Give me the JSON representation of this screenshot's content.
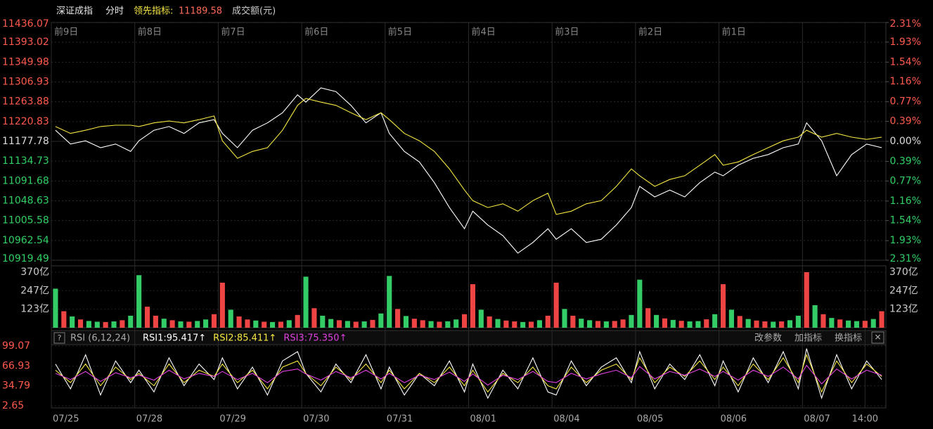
{
  "header": {
    "name": "深证成指",
    "mode": "分时",
    "leading_label": "领先指标:",
    "leading_value": "11189.58",
    "volume_label": "成交额(元)"
  },
  "chart_data": [
    {
      "type": "line",
      "up_color": "#ff5a4d",
      "down_color": "#2fd166",
      "flat_color": "#dddddd",
      "grid_color": "#2a2a2a",
      "day_labels": [
        "前9日",
        "前8日",
        "前7日",
        "前6日",
        "前5日",
        "前4日",
        "前3日",
        "前2日",
        "前1日"
      ],
      "xlim": [
        0,
        10
      ],
      "x": [
        0.05,
        0.23,
        0.41,
        0.59,
        0.77,
        0.95,
        1.05,
        1.23,
        1.41,
        1.59,
        1.77,
        1.95,
        2.05,
        2.23,
        2.41,
        2.59,
        2.77,
        2.95,
        3.05,
        3.23,
        3.41,
        3.59,
        3.77,
        3.95,
        4.05,
        4.23,
        4.41,
        4.59,
        4.77,
        4.95,
        5.05,
        5.23,
        5.41,
        5.59,
        5.77,
        5.95,
        6.05,
        6.23,
        6.41,
        6.59,
        6.77,
        6.95,
        7.05,
        7.23,
        7.41,
        7.59,
        7.77,
        7.95,
        8.05,
        8.23,
        8.41,
        8.59,
        8.77,
        8.95,
        9.05,
        9.23,
        9.41,
        9.59,
        9.77,
        9.95
      ],
      "ylim": [
        10919.49,
        11436.07
      ],
      "yticks": [
        11436.07,
        11393.02,
        11349.98,
        11306.93,
        11263.88,
        11220.83,
        11177.78,
        11134.73,
        11091.68,
        11048.63,
        11005.58,
        10962.54,
        10919.49
      ],
      "y2lim": [
        -2.31,
        2.31
      ],
      "y2ticks": [
        {
          "value": 2.31,
          "label": "2.31%"
        },
        {
          "value": 1.93,
          "label": "1.93%"
        },
        {
          "value": 1.54,
          "label": "1.54%"
        },
        {
          "value": 1.16,
          "label": "1.16%"
        },
        {
          "value": 0.77,
          "label": "0.77%"
        },
        {
          "value": 0.39,
          "label": "0.39%"
        },
        {
          "value": 0,
          "label": "0.00%"
        },
        {
          "value": -0.39,
          "label": "0.39%"
        },
        {
          "value": -0.77,
          "label": "0.77%"
        },
        {
          "value": -1.16,
          "label": "1.16%"
        },
        {
          "value": -1.54,
          "label": "1.54%"
        },
        {
          "value": -1.93,
          "label": "1.93%"
        },
        {
          "value": -2.31,
          "label": "2.31%"
        }
      ],
      "series": [
        {
          "color": "#ffffff",
          "values": [
            11202,
            11172,
            11179,
            11164,
            11172,
            11156,
            11179,
            11202,
            11210,
            11195,
            11218,
            11225,
            11195,
            11164,
            11202,
            11218,
            11240,
            11279,
            11263,
            11294,
            11286,
            11256,
            11218,
            11240,
            11195,
            11156,
            11133,
            11088,
            11034,
            10988,
            11026,
            10996,
            10973,
            10935,
            10958,
            10988,
            10965,
            10988,
            10958,
            10965,
            10996,
            11034,
            11080,
            11057,
            11072,
            11057,
            11088,
            11111,
            11103,
            11126,
            11141,
            11149,
            11164,
            11172,
            11218,
            11179,
            11103,
            11149,
            11172,
            11164
          ]
        },
        {
          "color": "#f5e642",
          "values": [
            11210,
            11195,
            11202,
            11210,
            11213,
            11213,
            11210,
            11218,
            11222,
            11218,
            11225,
            11233,
            11179,
            11141,
            11156,
            11164,
            11202,
            11256,
            11271,
            11263,
            11256,
            11240,
            11225,
            11240,
            11225,
            11195,
            11179,
            11156,
            11118,
            11072,
            11049,
            11034,
            11042,
            11026,
            11049,
            11065,
            11019,
            11026,
            11042,
            11049,
            11080,
            11118,
            11103,
            11080,
            11095,
            11103,
            11126,
            11149,
            11126,
            11133,
            11149,
            11164,
            11179,
            11187,
            11202,
            11187,
            11195,
            11187,
            11182,
            11187
          ]
        }
      ]
    },
    {
      "type": "bar",
      "ylim": [
        0,
        370
      ],
      "yticks": [
        {
          "value": 370,
          "label": "370亿"
        },
        {
          "value": 247,
          "label": "247亿"
        },
        {
          "value": 123,
          "label": "123亿"
        }
      ],
      "values": [
        260,
        110,
        75,
        55,
        45,
        40,
        38,
        42,
        50,
        80,
        350,
        140,
        80,
        60,
        50,
        42,
        40,
        45,
        55,
        90,
        300,
        120,
        75,
        55,
        48,
        40,
        38,
        40,
        50,
        85,
        340,
        130,
        80,
        58,
        50,
        45,
        40,
        42,
        52,
        95,
        345,
        125,
        78,
        60,
        50,
        44,
        40,
        43,
        55,
        90,
        290,
        120,
        75,
        58,
        48,
        42,
        38,
        40,
        50,
        80,
        300,
        125,
        80,
        60,
        50,
        45,
        42,
        45,
        55,
        85,
        320,
        130,
        85,
        62,
        52,
        46,
        42,
        44,
        56,
        90,
        290,
        120,
        78,
        58,
        48,
        42,
        40,
        42,
        50,
        80,
        370,
        150,
        90,
        65,
        55,
        48,
        44,
        46,
        58,
        110
      ],
      "colors": [
        "#3c6",
        "#e44",
        "#3c6",
        "#e44",
        "#3c6",
        "#3c6",
        "#e44",
        "#3c6",
        "#e44",
        "#3c6",
        "#3c6",
        "#e44",
        "#e44",
        "#3c6",
        "#e44",
        "#3c6",
        "#e44",
        "#3c6",
        "#3c6",
        "#e44",
        "#e44",
        "#3c6",
        "#e44",
        "#e44",
        "#3c6",
        "#e44",
        "#3c6",
        "#e44",
        "#3c6",
        "#e44",
        "#3c6",
        "#e44",
        "#3c6",
        "#3c6",
        "#e44",
        "#3c6",
        "#e44",
        "#3c6",
        "#e44",
        "#3c6",
        "#3c6",
        "#e44",
        "#3c6",
        "#e44",
        "#e44",
        "#3c6",
        "#e44",
        "#3c6",
        "#3c6",
        "#e44",
        "#e44",
        "#3c6",
        "#e44",
        "#3c6",
        "#e44",
        "#e44",
        "#3c6",
        "#e44",
        "#3c6",
        "#e44",
        "#e44",
        "#3c6",
        "#e44",
        "#3c6",
        "#3c6",
        "#e44",
        "#3c6",
        "#e44",
        "#e44",
        "#3c6",
        "#3c6",
        "#e44",
        "#3c6",
        "#e44",
        "#3c6",
        "#e44",
        "#3c6",
        "#3c6",
        "#e44",
        "#3c6",
        "#e44",
        "#3c6",
        "#e44",
        "#3c6",
        "#e44",
        "#e44",
        "#3c6",
        "#e44",
        "#3c6",
        "#3c6",
        "#e44",
        "#3c6",
        "#e44",
        "#3c6",
        "#e44",
        "#3c6",
        "#3c6",
        "#e44",
        "#3c6",
        "#e44"
      ]
    },
    {
      "type": "line",
      "title": "RSI (6,12,24)",
      "buttons": [
        "改参数",
        "加指标",
        "换指标"
      ],
      "xlim": [
        0,
        10
      ],
      "x": [
        0.05,
        0.23,
        0.41,
        0.59,
        0.77,
        0.95,
        1.05,
        1.23,
        1.41,
        1.59,
        1.77,
        1.95,
        2.05,
        2.23,
        2.41,
        2.59,
        2.77,
        2.95,
        3.05,
        3.23,
        3.41,
        3.59,
        3.77,
        3.95,
        4.05,
        4.23,
        4.41,
        4.59,
        4.77,
        4.95,
        5.05,
        5.23,
        5.41,
        5.59,
        5.77,
        5.95,
        6.05,
        6.23,
        6.41,
        6.59,
        6.77,
        6.95,
        7.05,
        7.23,
        7.41,
        7.59,
        7.77,
        7.95,
        8.05,
        8.23,
        8.41,
        8.59,
        8.77,
        8.95,
        9.05,
        9.23,
        9.41,
        9.59,
        9.77,
        9.95
      ],
      "xticks": [
        {
          "value": 0,
          "label": "07/25"
        },
        {
          "value": 1,
          "label": "07/28"
        },
        {
          "value": 2,
          "label": "07/29"
        },
        {
          "value": 3,
          "label": "07/30"
        },
        {
          "value": 4,
          "label": "07/31"
        },
        {
          "value": 5,
          "label": "08/01"
        },
        {
          "value": 6,
          "label": "08/04"
        },
        {
          "value": 7,
          "label": "08/05"
        },
        {
          "value": 8,
          "label": "08/06"
        },
        {
          "value": 9,
          "label": "08/07"
        },
        {
          "value": 9.75,
          "label": "14:00"
        }
      ],
      "ylim": [
        2.65,
        99.07
      ],
      "yticks": [
        99.07,
        66.93,
        34.79,
        2.65
      ],
      "series": [
        {
          "name": "RSI1:95.417↑",
          "color": "#ffffff",
          "values": [
            70,
            30,
            85,
            20,
            75,
            40,
            60,
            25,
            80,
            35,
            70,
            45,
            80,
            30,
            65,
            20,
            75,
            90,
            55,
            25,
            70,
            40,
            85,
            30,
            65,
            20,
            55,
            35,
            75,
            25,
            70,
            15,
            60,
            30,
            80,
            25,
            20,
            75,
            35,
            65,
            80,
            40,
            90,
            30,
            70,
            45,
            85,
            35,
            75,
            25,
            80,
            40,
            90,
            30,
            95,
            15,
            85,
            30,
            75,
            45
          ]
        },
        {
          "name": "RSI2:85.411↑",
          "color": "#f5e642",
          "values": [
            60,
            40,
            70,
            35,
            65,
            45,
            55,
            35,
            70,
            40,
            60,
            50,
            70,
            40,
            60,
            30,
            65,
            75,
            55,
            35,
            65,
            45,
            70,
            40,
            60,
            30,
            55,
            40,
            65,
            35,
            60,
            25,
            55,
            40,
            65,
            35,
            30,
            65,
            40,
            60,
            70,
            45,
            80,
            40,
            65,
            50,
            75,
            45,
            65,
            35,
            70,
            45,
            80,
            40,
            85,
            25,
            75,
            40,
            70,
            50
          ]
        },
        {
          "name": "RSI3:75.350↑",
          "color": "#e040e0",
          "values": [
            55,
            45,
            58,
            42,
            56,
            48,
            52,
            44,
            60,
            46,
            55,
            50,
            58,
            45,
            55,
            40,
            58,
            62,
            54,
            44,
            58,
            48,
            60,
            46,
            55,
            40,
            52,
            45,
            57,
            42,
            54,
            36,
            52,
            45,
            58,
            42,
            40,
            55,
            46,
            54,
            60,
            48,
            66,
            46,
            58,
            52,
            62,
            50,
            58,
            44,
            60,
            50,
            65,
            46,
            68,
            38,
            62,
            46,
            60,
            52
          ]
        }
      ]
    }
  ]
}
